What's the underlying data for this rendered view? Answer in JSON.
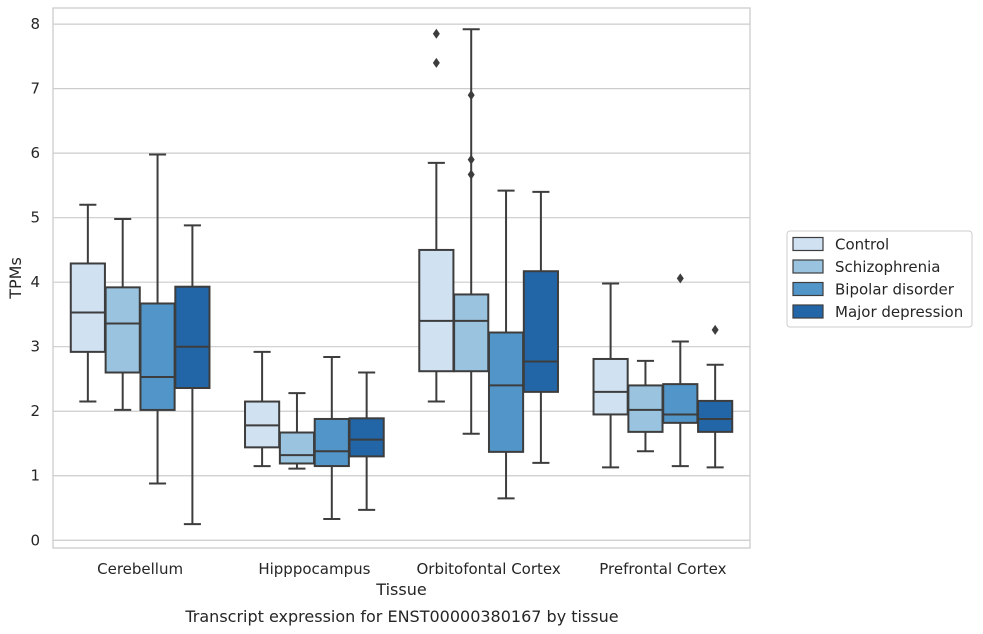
{
  "caption": "Transcript expression for ENST00000380167 by tissue",
  "chart_data": {
    "type": "boxplot",
    "xlabel": "Tissue",
    "ylabel": "TPMs",
    "ylim": [
      -0.12,
      8.25
    ],
    "yticks": [
      0,
      1,
      2,
      3,
      4,
      5,
      6,
      7,
      8
    ],
    "grid": "horizontal",
    "legend_position": "right",
    "categories": [
      "Cerebellum",
      "Hipppocampus",
      "Orbitofontal Cortex",
      "Prefrontal Cortex"
    ],
    "series": [
      {
        "name": "Control",
        "color": "#d0e1f2",
        "boxes": [
          {
            "whislo": 2.15,
            "q1": 2.92,
            "med": 3.53,
            "q3": 4.29,
            "whishi": 5.2,
            "fliers": []
          },
          {
            "whislo": 1.15,
            "q1": 1.44,
            "med": 1.78,
            "q3": 2.15,
            "whishi": 2.92,
            "fliers": []
          },
          {
            "whislo": 2.15,
            "q1": 2.62,
            "med": 3.4,
            "q3": 4.5,
            "whishi": 5.85,
            "fliers": [
              7.85,
              7.4
            ]
          },
          {
            "whislo": 1.13,
            "q1": 1.95,
            "med": 2.3,
            "q3": 2.81,
            "whishi": 3.98,
            "fliers": []
          }
        ]
      },
      {
        "name": "Schizophrenia",
        "color": "#9ac3df",
        "boxes": [
          {
            "whislo": 2.02,
            "q1": 2.6,
            "med": 3.36,
            "q3": 3.92,
            "whishi": 4.98,
            "fliers": []
          },
          {
            "whislo": 1.11,
            "q1": 1.19,
            "med": 1.32,
            "q3": 1.67,
            "whishi": 2.28,
            "fliers": []
          },
          {
            "whislo": 1.65,
            "q1": 2.62,
            "med": 3.4,
            "q3": 3.81,
            "whishi": 7.92,
            "fliers": [
              6.9,
              5.9,
              5.67
            ]
          },
          {
            "whislo": 1.38,
            "q1": 1.68,
            "med": 2.02,
            "q3": 2.4,
            "whishi": 2.78,
            "fliers": []
          }
        ]
      },
      {
        "name": "Bipolar disorder",
        "color": "#5295c8",
        "boxes": [
          {
            "whislo": 0.88,
            "q1": 2.02,
            "med": 2.53,
            "q3": 3.67,
            "whishi": 5.98,
            "fliers": []
          },
          {
            "whislo": 0.33,
            "q1": 1.15,
            "med": 1.38,
            "q3": 1.88,
            "whishi": 2.84,
            "fliers": []
          },
          {
            "whislo": 0.65,
            "q1": 1.37,
            "med": 2.4,
            "q3": 3.22,
            "whishi": 5.42,
            "fliers": []
          },
          {
            "whislo": 1.15,
            "q1": 1.82,
            "med": 1.95,
            "q3": 2.42,
            "whishi": 3.08,
            "fliers": [
              4.06
            ]
          }
        ]
      },
      {
        "name": "Major depression",
        "color": "#2266a8",
        "boxes": [
          {
            "whislo": 0.25,
            "q1": 2.36,
            "med": 3.0,
            "q3": 3.93,
            "whishi": 4.88,
            "fliers": []
          },
          {
            "whislo": 0.47,
            "q1": 1.3,
            "med": 1.56,
            "q3": 1.89,
            "whishi": 2.6,
            "fliers": []
          },
          {
            "whislo": 1.2,
            "q1": 2.3,
            "med": 2.77,
            "q3": 4.17,
            "whishi": 5.4,
            "fliers": []
          },
          {
            "whislo": 1.13,
            "q1": 1.68,
            "med": 1.88,
            "q3": 2.16,
            "whishi": 2.72,
            "fliers": [
              3.26
            ]
          }
        ]
      }
    ]
  }
}
